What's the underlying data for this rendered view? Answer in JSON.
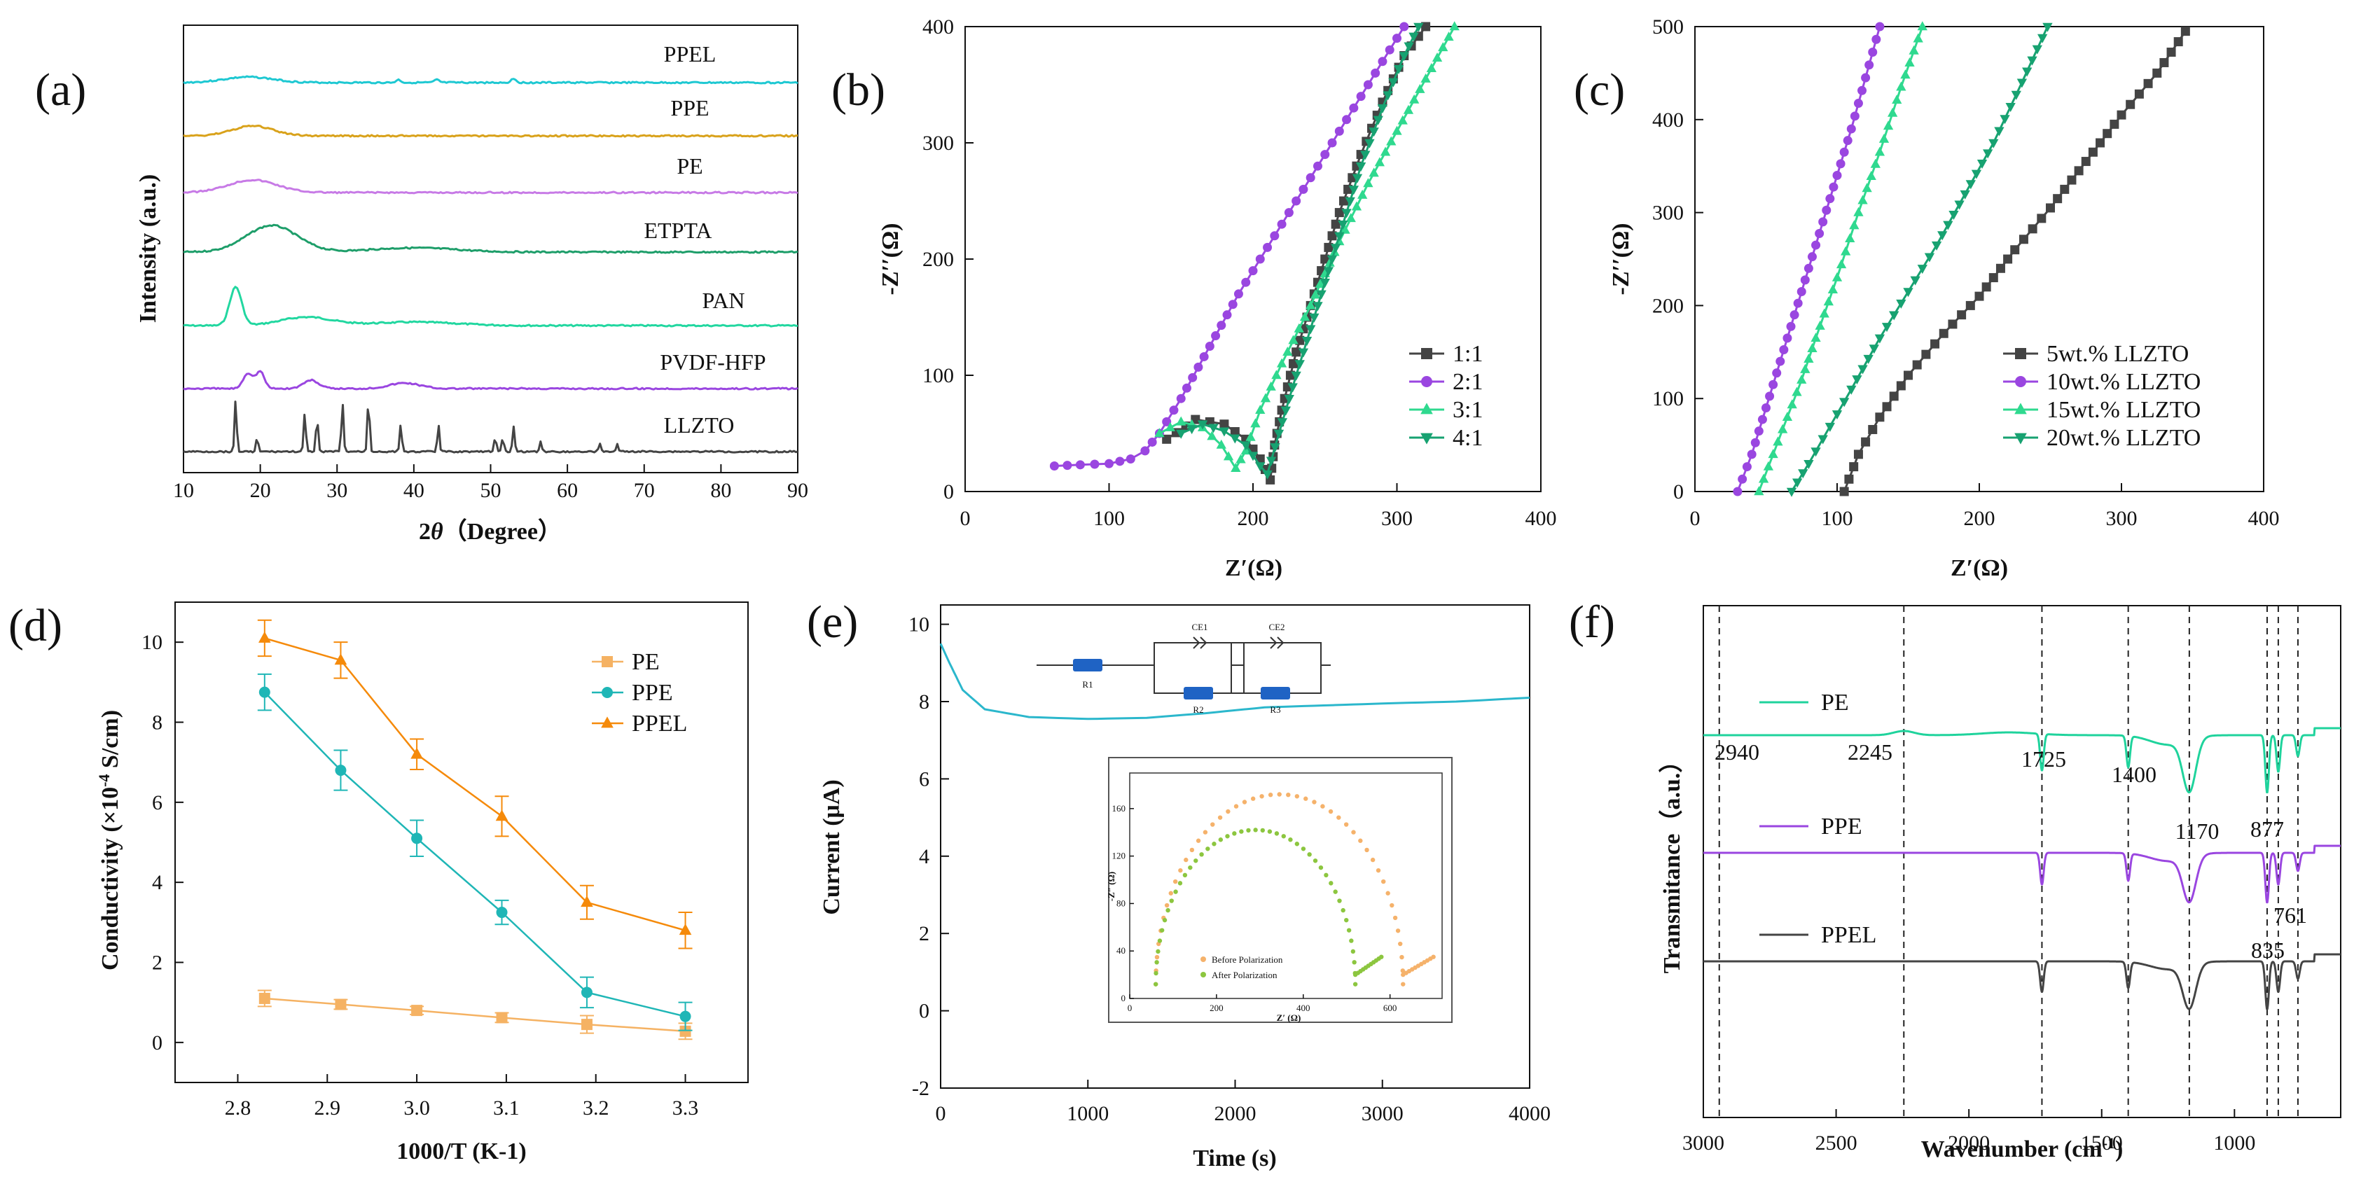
{
  "chart_data": [
    {
      "id": "a",
      "panel_label": "(a)",
      "type": "line",
      "xlabel_prefix": "2",
      "xlabel_theta": "θ",
      "xlabel_suffix": "（Degree）",
      "ylabel": "Intensity (a.u.)",
      "xlim": [
        10,
        90
      ],
      "xticks": [
        "10",
        "20",
        "30",
        "40",
        "50",
        "60",
        "70",
        "80",
        "90"
      ],
      "series": [
        {
          "name": "PPEL",
          "color": "#1ec8d2"
        },
        {
          "name": "PPE",
          "color": "#d9a21b"
        },
        {
          "name": "PE",
          "color": "#c77ae6"
        },
        {
          "name": "ETPTA",
          "color": "#1e9e6a"
        },
        {
          "name": "PAN",
          "color": "#22d7a0"
        },
        {
          "name": "PVDF-HFP",
          "color": "#9a46e0"
        },
        {
          "name": "LLZTO",
          "color": "#444444"
        }
      ],
      "llzto_peaks": [
        16.8,
        19.6,
        25.8,
        27.4,
        30.7,
        34.1,
        38.3,
        43.2,
        50.6,
        51.6,
        53.0,
        56.5,
        64.2,
        66.5
      ]
    },
    {
      "id": "b",
      "panel_label": "(b)",
      "type": "line",
      "xlabel": "Z′(Ω)",
      "ylabel": "-Z′′(Ω)",
      "xlim": [
        0,
        400
      ],
      "ylim": [
        0,
        400
      ],
      "xticks": [
        "0",
        "100",
        "200",
        "300",
        "400"
      ],
      "yticks": [
        "0",
        "100",
        "200",
        "300",
        "400"
      ],
      "legend_position": "bottom-right",
      "series": [
        {
          "name": "1:1",
          "color": "#444444",
          "marker": "square",
          "x": [
            140,
            160,
            180,
            195,
            205,
            212,
            215,
            220,
            230,
            245,
            260,
            275,
            290,
            305,
            320
          ],
          "y": [
            45,
            62,
            58,
            45,
            28,
            10,
            40,
            70,
            120,
            180,
            240,
            290,
            335,
            375,
            400
          ]
        },
        {
          "name": "2:1",
          "color": "#9a46e0",
          "marker": "circle",
          "x": [
            62,
            80,
            100,
            115,
            125,
            135,
            150,
            170,
            190,
            210,
            230,
            250,
            270,
            290,
            305
          ],
          "y": [
            22,
            23,
            24,
            28,
            35,
            50,
            80,
            125,
            170,
            210,
            250,
            290,
            330,
            370,
            400
          ]
        },
        {
          "name": "3:1",
          "color": "#2fd98f",
          "marker": "triangle-up",
          "x": [
            135,
            150,
            165,
            178,
            188,
            195,
            205,
            220,
            240,
            260,
            280,
            300,
            320,
            340
          ],
          "y": [
            50,
            60,
            55,
            40,
            20,
            35,
            70,
            110,
            160,
            215,
            265,
            310,
            355,
            400
          ]
        },
        {
          "name": "4:1",
          "color": "#17a271",
          "marker": "triangle-down",
          "x": [
            150,
            165,
            180,
            195,
            205,
            210,
            218,
            230,
            245,
            260,
            275,
            290,
            305,
            315
          ],
          "y": [
            50,
            58,
            52,
            40,
            22,
            15,
            50,
            100,
            160,
            220,
            280,
            330,
            375,
            400
          ]
        }
      ]
    },
    {
      "id": "c",
      "panel_label": "(c)",
      "type": "line",
      "xlabel": "Z′(Ω)",
      "ylabel": "-Z′′(Ω)",
      "xlim": [
        0,
        400
      ],
      "ylim": [
        0,
        500
      ],
      "xticks": [
        "0",
        "100",
        "200",
        "300",
        "400"
      ],
      "yticks": [
        "0",
        "100",
        "200",
        "300",
        "400",
        "500"
      ],
      "legend_position": "bottom-right",
      "series": [
        {
          "name": "5wt.% LLZTO",
          "color": "#444444",
          "marker": "square",
          "x": [
            105,
            115,
            130,
            150,
            175,
            200,
            225,
            250,
            275,
            300,
            325,
            345
          ],
          "y": [
            0,
            40,
            80,
            125,
            170,
            210,
            260,
            305,
            355,
            405,
            450,
            495
          ]
        },
        {
          "name": "10wt.% LLZTO",
          "color": "#9a46e0",
          "marker": "circle",
          "x": [
            30,
            40,
            50,
            60,
            70,
            80,
            90,
            100,
            110,
            120,
            130
          ],
          "y": [
            0,
            40,
            90,
            140,
            190,
            240,
            290,
            340,
            390,
            445,
            500
          ]
        },
        {
          "name": "15wt.% LLZTO",
          "color": "#2fd98f",
          "marker": "triangle-up",
          "x": [
            45,
            55,
            65,
            75,
            85,
            100,
            115,
            130,
            145,
            160
          ],
          "y": [
            0,
            40,
            80,
            120,
            165,
            230,
            300,
            365,
            435,
            500
          ]
        },
        {
          "name": "20wt.% LLZTO",
          "color": "#17a271",
          "marker": "triangle-down",
          "x": [
            68,
            80,
            95,
            110,
            130,
            150,
            170,
            190,
            210,
            230,
            248
          ],
          "y": [
            0,
            30,
            70,
            110,
            165,
            215,
            265,
            320,
            375,
            440,
            500
          ]
        }
      ]
    },
    {
      "id": "d",
      "panel_label": "(d)",
      "type": "line",
      "xlabel": "1000/T (K-1)",
      "ylabel_prefix": "Conductivity (×10",
      "ylabel_exp": "-4",
      "ylabel_suffix": " S/cm)",
      "xlim": [
        2.73,
        3.37
      ],
      "ylim": [
        -1,
        11
      ],
      "xticks": [
        "2.8",
        "2.9",
        "3.0",
        "3.1",
        "3.2",
        "3.3"
      ],
      "yticks": [
        "0",
        "2",
        "4",
        "6",
        "8",
        "10"
      ],
      "legend_position": "top-right",
      "series": [
        {
          "name": "PE",
          "color": "#f5b263",
          "marker": "square",
          "x": [
            2.83,
            2.915,
            3.0,
            3.095,
            3.19,
            3.3
          ],
          "y": [
            1.1,
            0.95,
            0.8,
            0.62,
            0.45,
            0.28
          ]
        },
        {
          "name": "PPE",
          "color": "#1fb6b6",
          "marker": "circle",
          "x": [
            2.83,
            2.915,
            3.0,
            3.095,
            3.19,
            3.3
          ],
          "y": [
            8.75,
            6.8,
            5.1,
            3.25,
            1.25,
            0.65
          ]
        },
        {
          "name": "PPEL",
          "color": "#f58a0a",
          "marker": "triangle-up",
          "x": [
            2.83,
            2.915,
            3.0,
            3.095,
            3.19,
            3.3
          ],
          "y": [
            10.1,
            9.55,
            7.2,
            5.65,
            3.5,
            2.8
          ]
        }
      ]
    },
    {
      "id": "e",
      "panel_label": "(e)",
      "type": "line",
      "xlabel": "Time (s)",
      "ylabel": "Current (μA)",
      "xlim": [
        0,
        4000
      ],
      "ylim": [
        -2,
        10.5
      ],
      "xticks": [
        "0",
        "1000",
        "2000",
        "3000",
        "4000"
      ],
      "yticks": [
        "-2",
        "0",
        "2",
        "4",
        "6",
        "8",
        "10"
      ],
      "series": [
        {
          "name": "Current",
          "color": "#2bb7cc",
          "x": [
            0,
            60,
            150,
            300,
            600,
            1000,
            1400,
            1800,
            2200,
            2600,
            3000,
            3500,
            4000
          ],
          "y": [
            9.5,
            9.0,
            8.3,
            7.8,
            7.6,
            7.55,
            7.58,
            7.7,
            7.85,
            7.9,
            7.95,
            8.0,
            8.1
          ]
        }
      ],
      "circuit_labels": [
        "R1",
        "CE1",
        "R2",
        "CE2",
        "R3"
      ],
      "inset": {
        "xlabel": "Z′ (Ω)",
        "ylabel": "-Z″ (Ω)",
        "xlim": [
          0,
          720
        ],
        "ylim": [
          0,
          190
        ],
        "xticks": [
          "0",
          "200",
          "400",
          "600"
        ],
        "yticks": [
          "0",
          "40",
          "80",
          "120",
          "160"
        ],
        "series": [
          {
            "name": "Before Polarization",
            "color": "#f5b26b",
            "x0": 60,
            "x1": 630,
            "peak": 172,
            "tail": [
              [
                630,
                20
              ],
              [
                700,
                35
              ]
            ]
          },
          {
            "name": "After Polarization",
            "color": "#8cc63f",
            "x0": 60,
            "x1": 520,
            "peak": 142,
            "tail": [
              [
                520,
                20
              ],
              [
                580,
                35
              ]
            ]
          }
        ]
      }
    },
    {
      "id": "f",
      "panel_label": "(f)",
      "type": "line",
      "xlabel_prefix": "Wavenumber (cm",
      "xlabel_exp": "-1",
      "xlabel_suffix": ")",
      "ylabel": "Transmitance（a.u.）",
      "xlim": [
        3000,
        600
      ],
      "x_reversed": true,
      "xticks": [
        "3000",
        "2500",
        "2000",
        "1500",
        "1000"
      ],
      "dashed_lines": [
        2940,
        2245,
        1725,
        1400,
        1170,
        877,
        835,
        761
      ],
      "peak_labels": [
        "2940",
        "2245",
        "1725",
        "1400",
        "1170",
        "877",
        "835",
        "761"
      ],
      "series": [
        {
          "name": "PE",
          "color": "#1fd39c"
        },
        {
          "name": "PPE",
          "color": "#9a46e0"
        },
        {
          "name": "PPEL",
          "color": "#444444"
        }
      ],
      "absorption_bands": [
        [
          1725,
          14
        ],
        [
          1400,
          12
        ],
        [
          1170,
          20
        ],
        [
          877,
          22
        ],
        [
          835,
          14
        ],
        [
          761,
          8
        ]
      ]
    }
  ]
}
